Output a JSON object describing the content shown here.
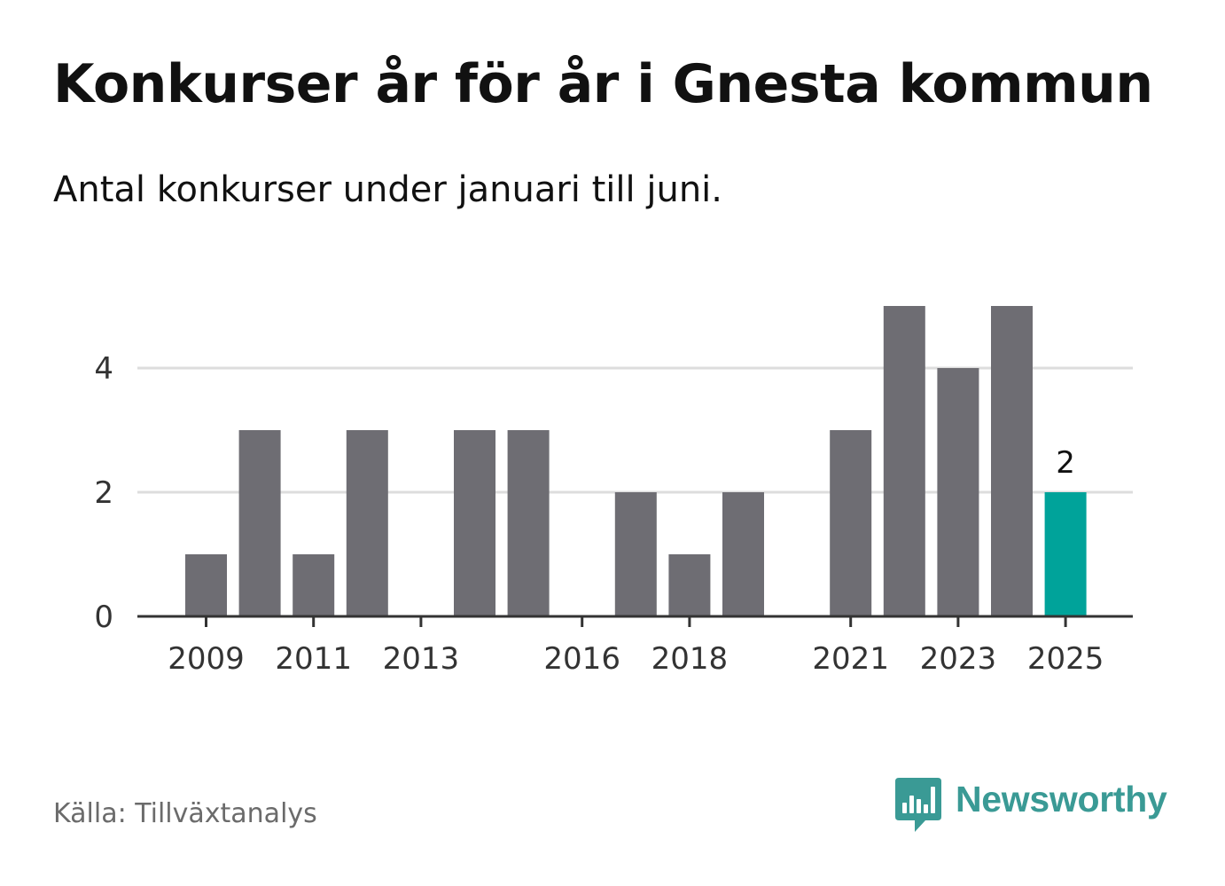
{
  "title": "Konkurser år för år i Gnesta kommun",
  "subtitle": "Antal konkurser under januari till juni.",
  "source": "Källa: Tillväxtanalys",
  "brand": {
    "name": "Newsworthy",
    "color": "#3a9a95",
    "icon": "newsworthy-logo-icon"
  },
  "colors": {
    "bar": "#6e6d73",
    "highlight": "#00a39a",
    "grid": "#dddddd",
    "axis": "#333333",
    "tick_text": "#333333"
  },
  "chart_data": {
    "type": "bar",
    "x": [
      2009,
      2010,
      2011,
      2012,
      2013,
      2014,
      2015,
      2016,
      2017,
      2018,
      2019,
      2020,
      2021,
      2022,
      2023,
      2024,
      2025
    ],
    "values": [
      1,
      3,
      1,
      3,
      0,
      3,
      3,
      0,
      2,
      1,
      2,
      0,
      3,
      5,
      4,
      5,
      2
    ],
    "x_tick_labels": [
      "2009",
      "2011",
      "2013",
      "2016",
      "2018",
      "2021",
      "2023",
      "2025"
    ],
    "y_ticks": [
      0,
      2,
      4
    ],
    "ylim": [
      0,
      5
    ],
    "grid": true,
    "highlight": {
      "x": 2025,
      "label": "2"
    },
    "xlabel": "",
    "ylabel": ""
  }
}
